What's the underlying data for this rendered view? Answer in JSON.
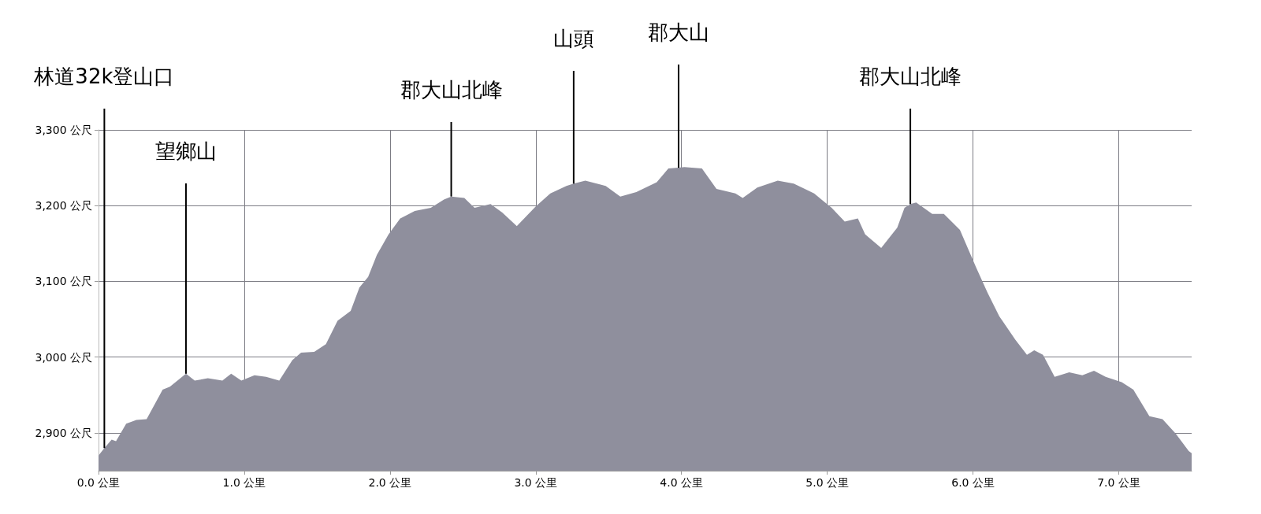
{
  "chart_data": {
    "type": "area",
    "color": "#8f8f9d",
    "x": [
      0,
      0.04,
      0.09,
      0.12,
      0.19,
      0.26,
      0.33,
      0.44,
      0.49,
      0.6,
      0.66,
      0.75,
      0.85,
      0.91,
      0.98,
      1.07,
      1.15,
      1.24,
      1.33,
      1.39,
      1.48,
      1.56,
      1.64,
      1.73,
      1.79,
      1.85,
      1.91,
      1.99,
      2.07,
      2.17,
      2.28,
      2.37,
      2.42,
      2.51,
      2.58,
      2.69,
      2.77,
      2.87,
      2.94,
      3.0,
      3.1,
      3.21,
      3.26,
      3.34,
      3.48,
      3.58,
      3.69,
      3.83,
      3.91,
      3.98,
      4.02,
      4.14,
      4.24,
      4.37,
      4.42,
      4.52,
      4.66,
      4.77,
      4.91,
      5.03,
      5.12,
      5.21,
      5.26,
      5.37,
      5.48,
      5.53,
      5.57,
      5.61,
      5.72,
      5.8,
      5.91,
      6.02,
      6.1,
      6.18,
      6.29,
      6.37,
      6.42,
      6.48,
      6.56,
      6.66,
      6.75,
      6.83,
      6.91,
      7.02,
      7.1,
      7.21,
      7.3,
      7.39,
      7.48,
      7.5
    ],
    "values": [
      2870,
      2880,
      2891,
      2889,
      2912,
      2917,
      2918,
      2957,
      2961,
      2978,
      2969,
      2972,
      2969,
      2978,
      2969,
      2976,
      2974,
      2969,
      2996,
      3006,
      3007,
      3017,
      3048,
      3061,
      3092,
      3106,
      3135,
      3162,
      3183,
      3193,
      3197,
      3208,
      3212,
      3210,
      3197,
      3202,
      3191,
      3173,
      3187,
      3199,
      3216,
      3226,
      3229,
      3233,
      3226,
      3212,
      3218,
      3231,
      3249,
      3250,
      3251,
      3249,
      3222,
      3216,
      3210,
      3224,
      3233,
      3229,
      3216,
      3197,
      3179,
      3183,
      3162,
      3144,
      3171,
      3197,
      3202,
      3204,
      3189,
      3189,
      3168,
      3119,
      3085,
      3054,
      3023,
      3003,
      3009,
      3003,
      2974,
      2980,
      2976,
      2982,
      2974,
      2967,
      2957,
      2922,
      2918,
      2899,
      2876,
      2873
    ],
    "xlim": [
      0,
      7.5
    ],
    "xticks": [
      {
        "value": 0,
        "label": "0.0 公里"
      },
      {
        "value": 1,
        "label": "1.0 公里"
      },
      {
        "value": 2,
        "label": "2.0 公里"
      },
      {
        "value": 3,
        "label": "3.0 公里"
      },
      {
        "value": 4,
        "label": "4.0 公里"
      },
      {
        "value": 5,
        "label": "5.0 公里"
      },
      {
        "value": 6,
        "label": "6.0 公里"
      },
      {
        "value": 7,
        "label": "7.0 公里"
      }
    ],
    "ylim": [
      2850,
      3300
    ],
    "yticks": [
      {
        "value": 2900,
        "label": "2,900 公尺"
      },
      {
        "value": 3000,
        "label": "3,000 公尺"
      },
      {
        "value": 3100,
        "label": "3,100 公尺"
      },
      {
        "value": 3200,
        "label": "3,200 公尺"
      },
      {
        "value": 3300,
        "label": "3,300 公尺"
      }
    ],
    "grid": true,
    "annotations": [
      {
        "text": "林道32k登山口",
        "x": 0.04,
        "y": 2880
      },
      {
        "text": "望鄉山",
        "x": 0.6,
        "y": 2978
      },
      {
        "text": "郡大山北峰",
        "x": 2.42,
        "y": 3212
      },
      {
        "text": "山頭",
        "x": 3.26,
        "y": 3229
      },
      {
        "text": "郡大山",
        "x": 3.98,
        "y": 3250
      },
      {
        "text": "郡大山北峰",
        "x": 5.57,
        "y": 3202
      }
    ]
  }
}
